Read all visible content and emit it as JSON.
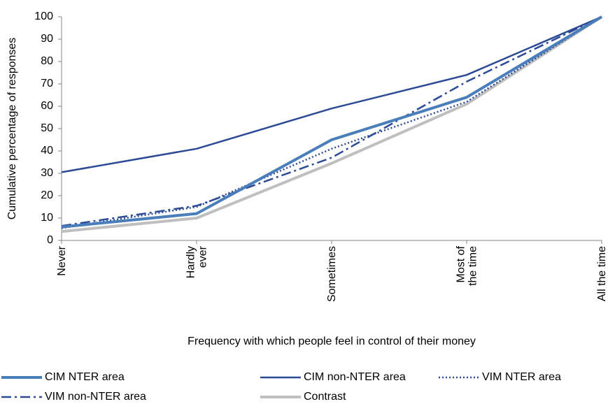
{
  "chart_data": {
    "type": "line",
    "x_label": "Frequency with which people feel in control of their money",
    "y_label": "Cumulative percentage of responses",
    "categories": [
      "Never",
      "Hardly\never",
      "Sometimes",
      "Most of\nthe time",
      "All the time"
    ],
    "ylim": [
      0,
      100
    ],
    "yticks": [
      0,
      10,
      20,
      30,
      40,
      50,
      60,
      70,
      80,
      90,
      100
    ],
    "grid": false,
    "legend": "bottom",
    "series": [
      {
        "name": "CIM NTER area",
        "color": "#4a7ebb",
        "style": "solid",
        "width": 4,
        "values": [
          6,
          12,
          45,
          64,
          100
        ]
      },
      {
        "name": "CIM non-NTER area",
        "color": "#2c4a95",
        "style": "solid",
        "width": 2.5,
        "values": [
          30.5,
          41,
          59,
          74,
          100
        ]
      },
      {
        "name": "VIM NTER area",
        "color": "#2c4a95",
        "style": "dot",
        "width": 2.5,
        "values": [
          5.5,
          15,
          41,
          62,
          100
        ]
      },
      {
        "name": "VIM non-NTER area",
        "color": "#2c4a95",
        "style": "dashdot",
        "width": 2.5,
        "values": [
          6.5,
          15.5,
          37,
          71,
          100
        ]
      },
      {
        "name": "Contrast",
        "color": "#bfbfbf",
        "style": "solid",
        "width": 4,
        "values": [
          4,
          10,
          34.5,
          61,
          100
        ]
      }
    ]
  }
}
